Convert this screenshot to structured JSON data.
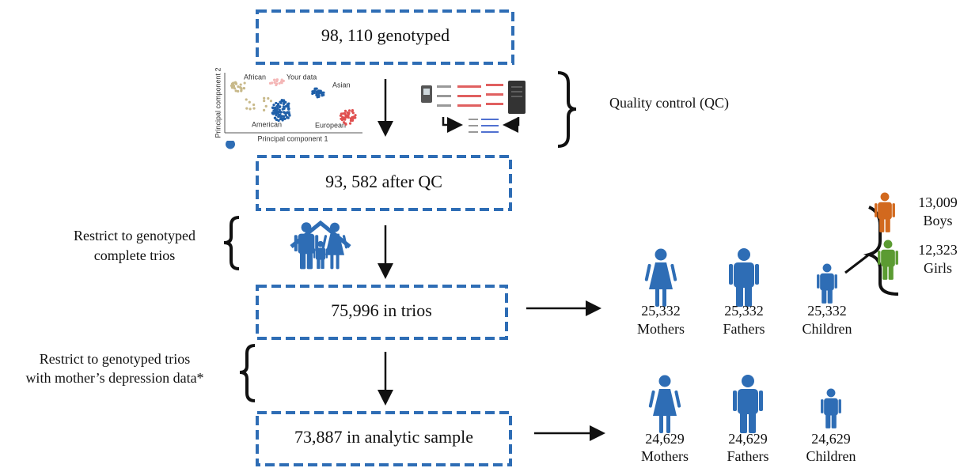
{
  "steps": [
    {
      "label": "98, 110 genotyped"
    },
    {
      "label": "93, 582 after QC"
    },
    {
      "label": "75,996 in trios"
    },
    {
      "label": "73,887 in analytic sample"
    }
  ],
  "qc_label": "Quality control (QC)",
  "pca_plot": {
    "y_axis": "Principal component 2",
    "x_axis": "Principal component 1",
    "groups": [
      "African",
      "Your data",
      "Asian",
      "American",
      "European"
    ]
  },
  "filters": [
    {
      "lines": [
        "Restrict to genotyped",
        "complete trios"
      ]
    },
    {
      "lines": [
        "Restrict to genotyped trios",
        "with mother’s depression data*"
      ]
    }
  ],
  "trios": {
    "members": [
      {
        "count": "25,332",
        "label": "Mothers"
      },
      {
        "count": "25,332",
        "label": "Fathers"
      },
      {
        "count": "25,332",
        "label": "Children"
      }
    ],
    "children_split": [
      {
        "count": "13,009",
        "label": "Boys"
      },
      {
        "count": "12,323",
        "label": "Girls"
      }
    ]
  },
  "analytic_sample": {
    "members": [
      {
        "count": "24,629",
        "label": "Mothers"
      },
      {
        "count": "24,629",
        "label": "Fathers"
      },
      {
        "count": "24,629",
        "label": "Children"
      }
    ]
  }
}
